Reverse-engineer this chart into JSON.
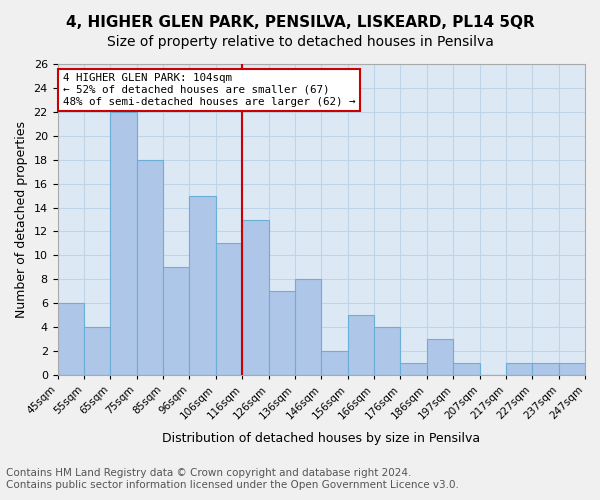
{
  "title1": "4, HIGHER GLEN PARK, PENSILVA, LISKEARD, PL14 5QR",
  "title2": "Size of property relative to detached houses in Pensilva",
  "xlabel": "Distribution of detached houses by size in Pensilva",
  "ylabel": "Number of detached properties",
  "footnote1": "Contains HM Land Registry data © Crown copyright and database right 2024.",
  "footnote2": "Contains public sector information licensed under the Open Government Licence v3.0.",
  "bin_labels": [
    "45sqm",
    "55sqm",
    "65sqm",
    "75sqm",
    "85sqm",
    "96sqm",
    "106sqm",
    "116sqm",
    "126sqm",
    "136sqm",
    "146sqm",
    "156sqm",
    "166sqm",
    "176sqm",
    "186sqm",
    "197sqm",
    "207sqm",
    "217sqm",
    "227sqm",
    "237sqm",
    "247sqm"
  ],
  "bar_heights": [
    6,
    4,
    22,
    18,
    9,
    15,
    11,
    13,
    7,
    8,
    2,
    5,
    4,
    1,
    3,
    1,
    0,
    1,
    1,
    1
  ],
  "bar_color": "#aec6e8",
  "bar_edge_color": "#6baed6",
  "red_line_index": 6,
  "annotation_line1": "4 HIGHER GLEN PARK: 104sqm",
  "annotation_line2": "← 52% of detached houses are smaller (67)",
  "annotation_line3": "48% of semi-detached houses are larger (62) →",
  "annotation_box_color": "#ffffff",
  "annotation_box_edge": "#cc0000",
  "red_line_color": "#cc0000",
  "ylim": [
    0,
    26
  ],
  "yticks": [
    0,
    2,
    4,
    6,
    8,
    10,
    12,
    14,
    16,
    18,
    20,
    22,
    24,
    26
  ],
  "grid_color": "#c0d4e8",
  "background_color": "#dce9f5",
  "title1_fontsize": 11,
  "title2_fontsize": 10,
  "xlabel_fontsize": 9,
  "ylabel_fontsize": 9,
  "footnote_fontsize": 7.5
}
